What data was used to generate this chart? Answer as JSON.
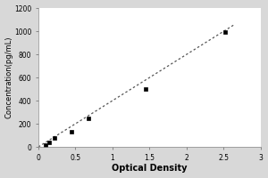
{
  "x_data": [
    0.1,
    0.15,
    0.22,
    0.45,
    0.68,
    1.45,
    2.52
  ],
  "y_data": [
    15,
    40,
    80,
    130,
    250,
    500,
    990
  ],
  "line_x": [
    0.0,
    2.65
  ],
  "line_y": [
    0.0,
    1060
  ],
  "xlabel": "Optical Density",
  "ylabel": "Concentration(pg/mL)",
  "xlim": [
    0,
    3
  ],
  "ylim": [
    0,
    1200
  ],
  "xticks": [
    0,
    0.5,
    1,
    1.5,
    2,
    2.5,
    3
  ],
  "yticks": [
    0,
    200,
    400,
    600,
    800,
    1000,
    1200
  ],
  "marker_color": "black",
  "line_color": "#555555",
  "background_color": "#d8d8d8",
  "plot_bg_color": "#ffffff",
  "marker_size": 3.5,
  "marker_edge_width": 1.0,
  "line_width": 0.9,
  "xlabel_fontsize": 7,
  "ylabel_fontsize": 6,
  "tick_fontsize": 5.5,
  "xlabel_fontweight": "bold",
  "ylabel_fontweight": "normal"
}
